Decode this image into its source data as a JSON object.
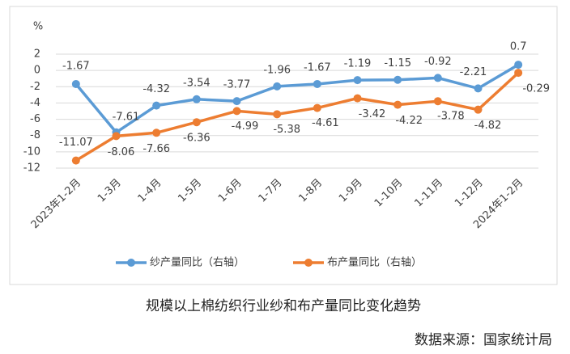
{
  "chart_data": {
    "type": "line",
    "y_label": "%",
    "categories": [
      "2023年1-2月",
      "1-3月",
      "1-4月",
      "1-5月",
      "1-6月",
      "1-7月",
      "1-8月",
      "1-9月",
      "1-10月",
      "1-11月",
      "1-12月",
      "2024年1-2月"
    ],
    "series": [
      {
        "name": "纱产量同比（右轴）",
        "color": "#5b9bd5",
        "values": [
          -1.67,
          -7.61,
          -4.32,
          -3.54,
          -3.77,
          -1.96,
          -1.67,
          -1.19,
          -1.15,
          -0.92,
          -2.21,
          0.7
        ]
      },
      {
        "name": "布产量同比（右轴）",
        "color": "#ed7d31",
        "values": [
          -11.07,
          -8.06,
          -7.66,
          -6.36,
          -4.99,
          -5.38,
          -4.61,
          -3.42,
          -4.22,
          -3.78,
          -4.82,
          -0.29
        ]
      }
    ],
    "ylim": [
      -12,
      2
    ],
    "yticks": [
      2,
      0,
      -2,
      -4,
      -6,
      -8,
      -10,
      -12
    ],
    "grid": true,
    "legend": "bottom"
  },
  "caption": "规模以上棉纺织行业纱和布产量同比变化趋势",
  "source": "数据来源：国家统计局"
}
